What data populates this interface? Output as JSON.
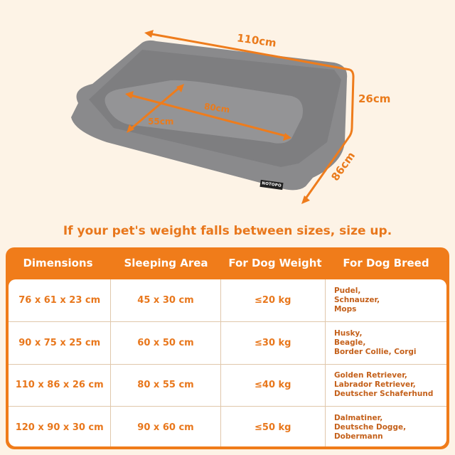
{
  "product": {
    "brand_label": "NOTOPO",
    "dimensions": {
      "length": "110cm",
      "height": "26cm",
      "depth": "86cm",
      "inner_length": "80cm",
      "inner_width": "55cm"
    },
    "colors": {
      "accent": "#f07c1a",
      "background": "#fdf3e6",
      "bed": "#8a8a8c"
    }
  },
  "tip": "If your pet's weight falls between sizes, size up.",
  "table": {
    "headers": [
      "Dimensions",
      "Sleeping Area",
      "For Dog Weight",
      "For Dog Breed"
    ],
    "rows": [
      [
        "76 x 61 x 23 cm",
        "45 x 30 cm",
        "≤20 kg",
        "Pudel,\nSchnauzer,\nMops"
      ],
      [
        "90 x 75 x 25 cm",
        "60 x 50 cm",
        "≤30 kg",
        "Husky,\nBeagle,\nBorder Collie, Corgi"
      ],
      [
        "110 x 86 x 26 cm",
        "80 x 55 cm",
        "≤40 kg",
        "Golden Retriever,\nLabrador Retriever,\nDeutscher Schaferhund"
      ],
      [
        "120 x 90 x 30 cm",
        "90 x 60 cm",
        "≤50 kg",
        "Dalmatiner,\nDeutsche Dogge,\nDobermann"
      ]
    ]
  }
}
